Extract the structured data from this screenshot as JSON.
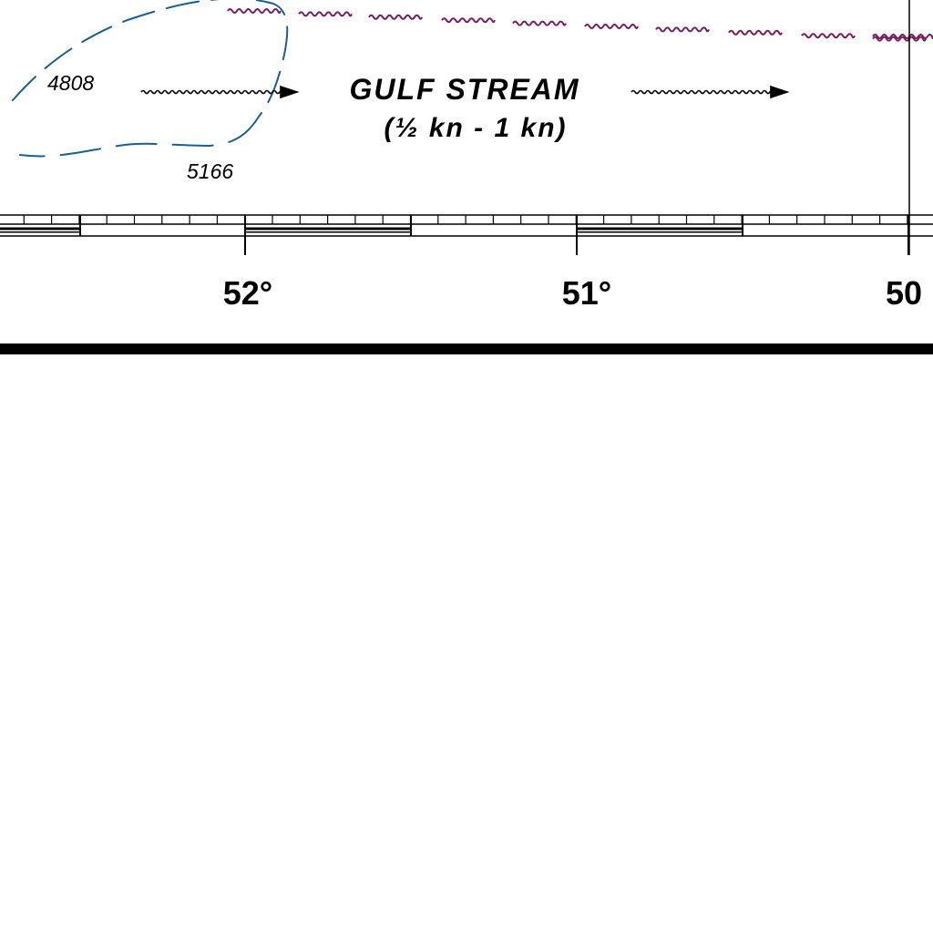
{
  "map": {
    "current_label": "GULF STREAM",
    "current_speed": "(½ kn - 1 kn)",
    "depth_soundings": [
      "4808",
      "5166"
    ],
    "longitude_labels": [
      "52°",
      "51°",
      "50"
    ],
    "colors": {
      "ink": "#000000",
      "depth_contour": "#1a5f8f",
      "boundary_squiggle": "#7a1f5c",
      "background": "#ffffff"
    },
    "icons": {
      "current_arrow_left": "wavy-arrow-icon",
      "current_arrow_right": "wavy-arrow-icon"
    }
  }
}
